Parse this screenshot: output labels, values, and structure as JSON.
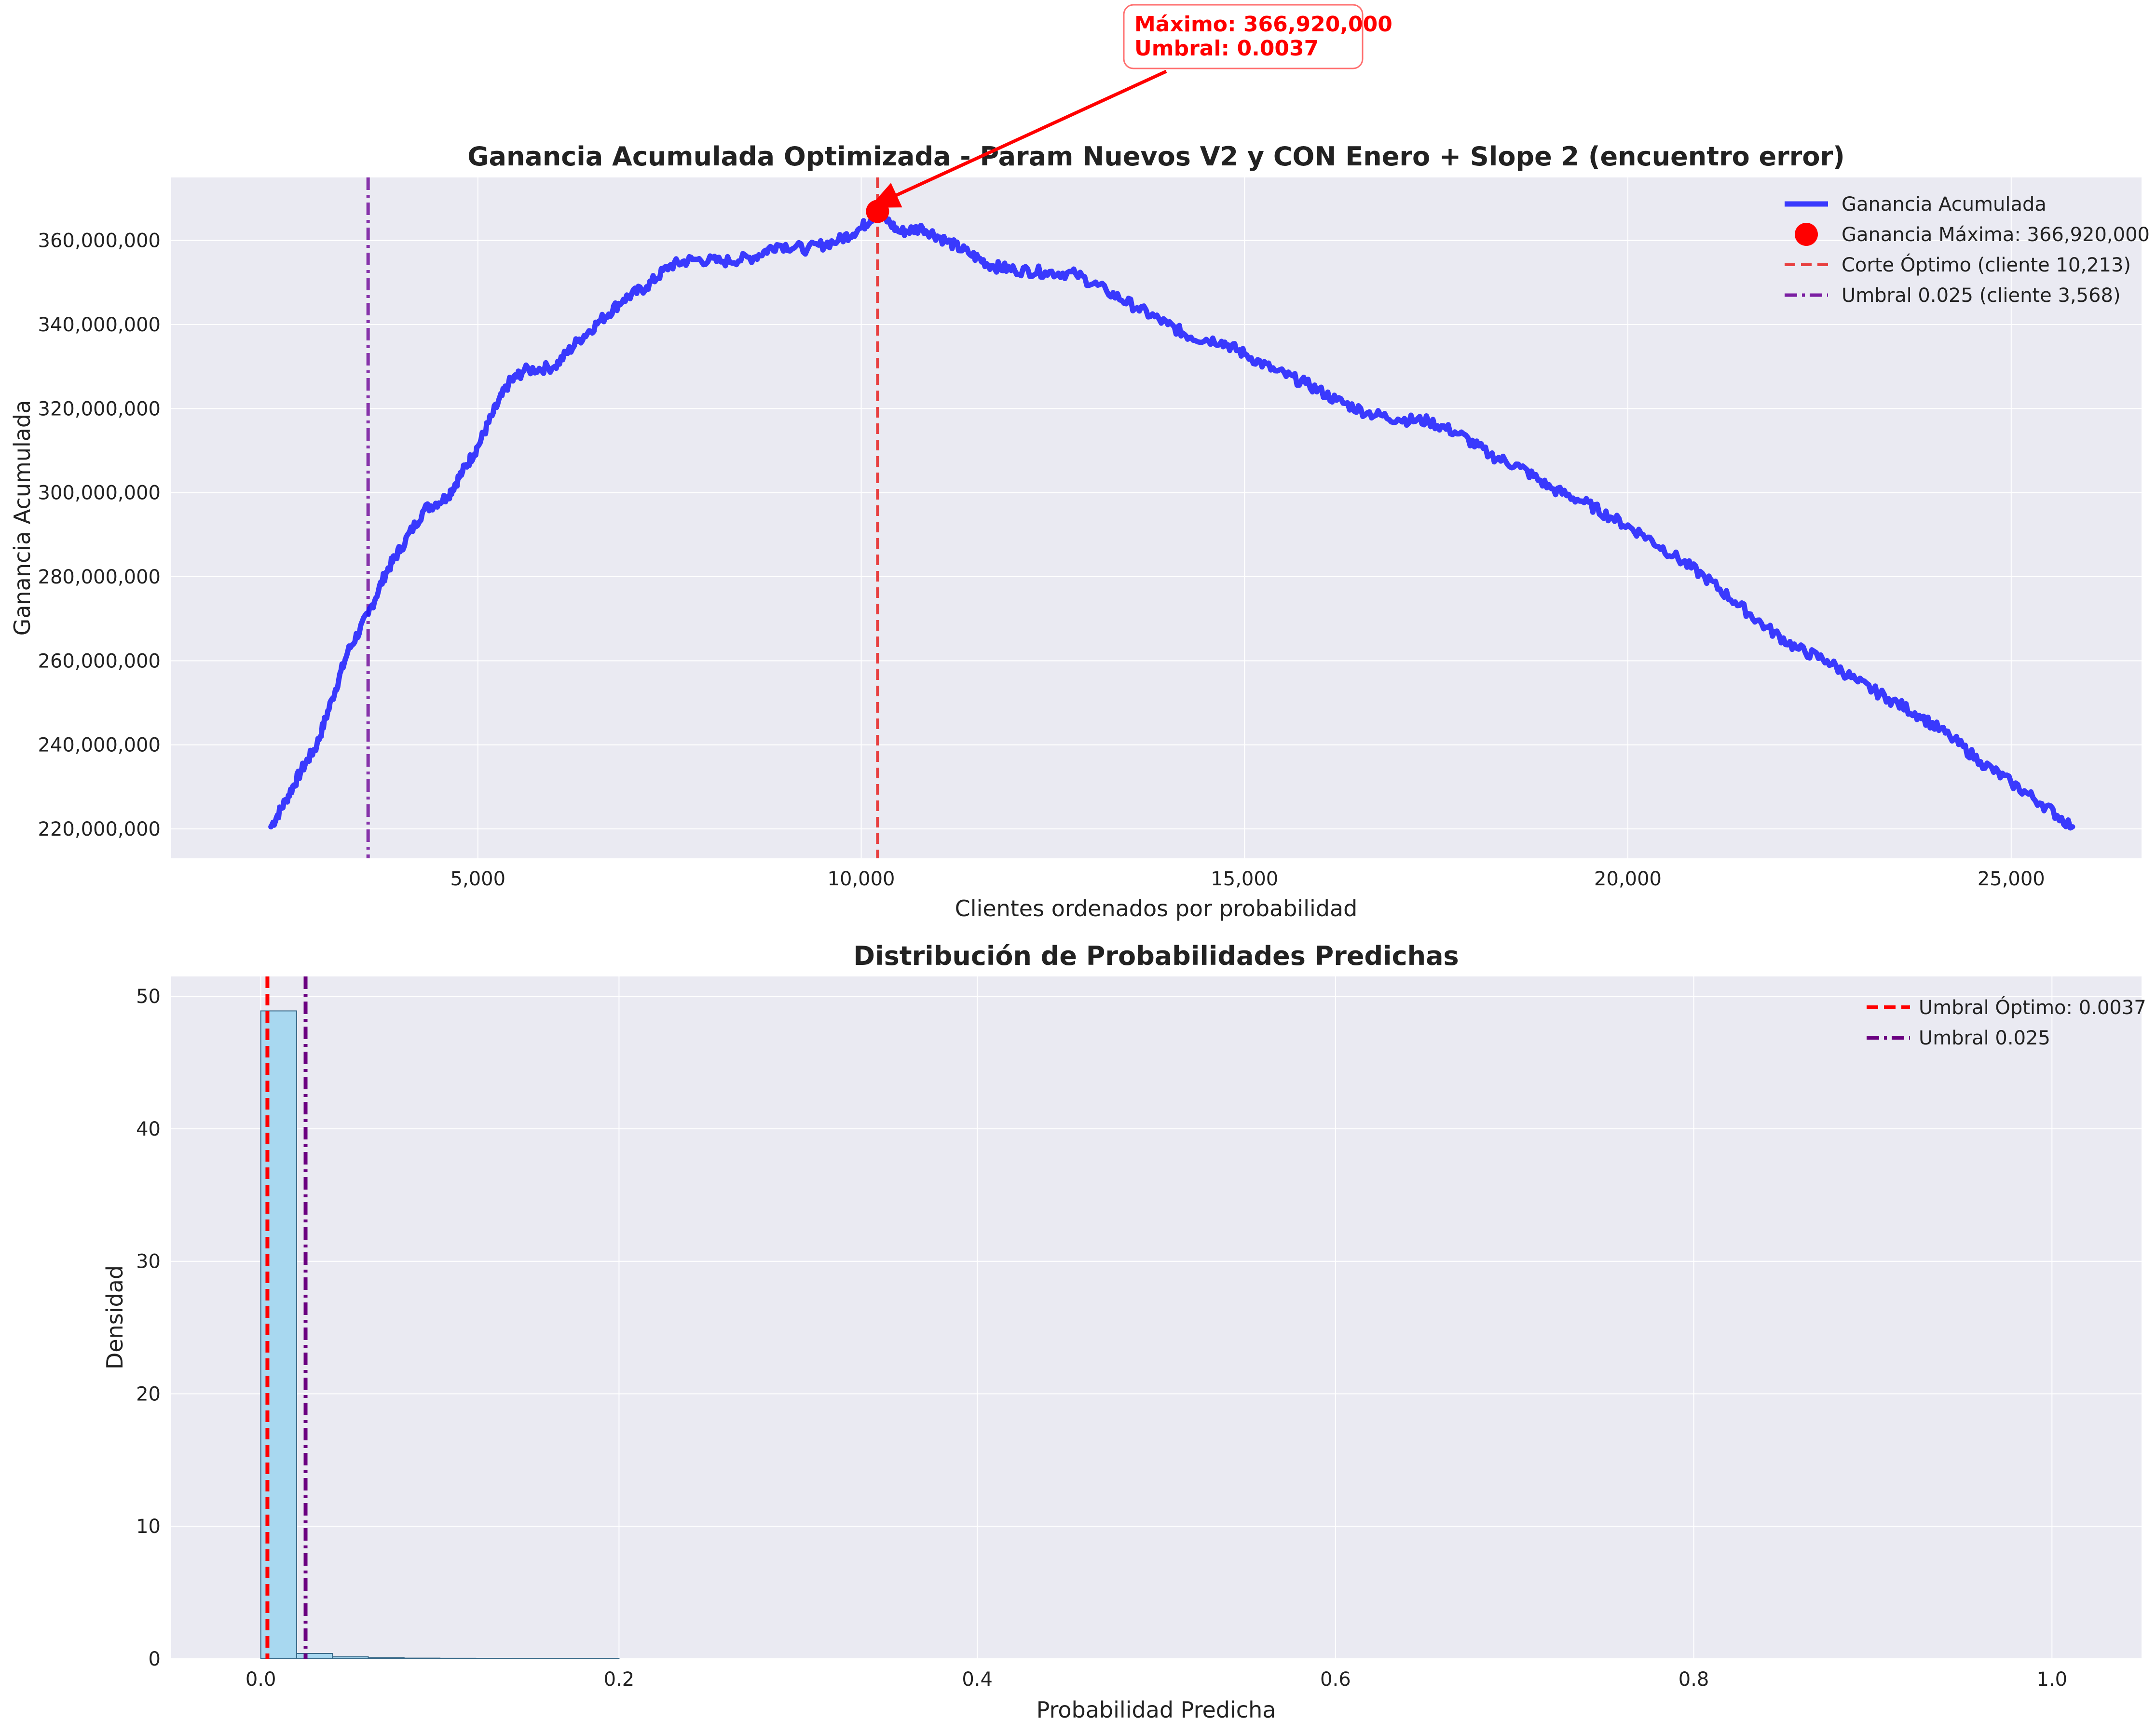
{
  "colors": {
    "axes_bg": "#eaeaf2",
    "grid": "#ffffff",
    "curve": "#1a1aff",
    "max_marker": "#ff0000",
    "optimal_line": "#e84040",
    "umbral_line": "#7b1fa2",
    "hist_fill": "#a8d8f0",
    "hist_edge": "#3a6b8a",
    "hist_optimal_line": "#ff0000",
    "hist_umbral_line": "#6a0080"
  },
  "annotation": {
    "line1": "Máximo: 366,920,000",
    "line2": "Umbral: 0.0037"
  },
  "chart_data": [
    {
      "type": "line",
      "title": "Ganancia Acumulada Optimizada - Param Nuevos V2 y CON Enero + Slope 2 (encuentro error)",
      "xlabel": "Clientes ordenados por probabilidad",
      "ylabel": "Ganancia Acumulada",
      "xlim": [
        1000,
        26700
      ],
      "ylim": [
        213000000,
        375000000
      ],
      "xticks": [
        5000,
        10000,
        15000,
        20000,
        25000
      ],
      "xtick_labels": [
        "5,000",
        "10,000",
        "15,000",
        "20,000",
        "25,000"
      ],
      "yticks": [
        220000000,
        240000000,
        260000000,
        280000000,
        300000000,
        320000000,
        340000000,
        360000000
      ],
      "ytick_labels": [
        "220,000,000",
        "240,000,000",
        "260,000,000",
        "280,000,000",
        "300,000,000",
        "320,000,000",
        "340,000,000",
        "360,000,000"
      ],
      "grid": true,
      "legend_position": "top-right",
      "series": [
        {
          "name": "Ganancia Acumulada",
          "x": [
            2300,
            2500,
            2700,
            2900,
            3100,
            3300,
            3568,
            3800,
            4000,
            4300,
            4600,
            4800,
            5000,
            5200,
            5400,
            5600,
            6000,
            6300,
            6600,
            6900,
            7200,
            7500,
            7800,
            8200,
            8600,
            8900,
            9300,
            9700,
            10000,
            10213,
            10500,
            10800,
            11100,
            11400,
            11700,
            12000,
            12400,
            12800,
            13200,
            13600,
            14000,
            14300,
            14700,
            15000,
            15400,
            15800,
            16200,
            16600,
            17000,
            17400,
            17800,
            18200,
            18600,
            19000,
            19400,
            19800,
            20200,
            20600,
            21000,
            21400,
            21800,
            22200,
            22600,
            23000,
            23400,
            23800,
            24200,
            24600,
            25000,
            25400,
            25800
          ],
          "y": [
            220500000,
            227000000,
            234000000,
            240000000,
            251000000,
            262000000,
            271000000,
            281000000,
            287000000,
            296000000,
            299000000,
            305000000,
            311000000,
            319000000,
            326000000,
            329000000,
            330000000,
            336000000,
            341000000,
            346000000,
            349000000,
            354000000,
            355500000,
            355000000,
            356000000,
            359000000,
            358000000,
            360000000,
            363000000,
            366920000,
            362000000,
            363000000,
            360000000,
            357000000,
            354000000,
            353000000,
            352500000,
            352000000,
            348000000,
            344000000,
            340000000,
            337000000,
            336000000,
            333000000,
            329000000,
            326000000,
            322000000,
            319000000,
            317500000,
            317000000,
            314000000,
            309000000,
            306000000,
            301000000,
            298000000,
            294000000,
            290000000,
            285000000,
            280000000,
            274000000,
            268000000,
            263000000,
            260000000,
            255000000,
            251000000,
            247000000,
            242000000,
            236000000,
            231000000,
            226000000,
            220500000
          ]
        },
        {
          "name": "Ganancia Máxima: 366,920,000",
          "x": [
            10213
          ],
          "y": [
            366920000
          ]
        }
      ],
      "vlines": [
        {
          "name": "Corte Óptimo (cliente 10,213)",
          "x": 10213
        },
        {
          "name": "Umbral 0.025 (cliente 3,568)",
          "x": 3568
        }
      ]
    },
    {
      "type": "bar",
      "title": "Distribución de Probabilidades Predichas",
      "xlabel": "Probabilidad Predicha",
      "ylabel": "Densidad",
      "xlim": [
        -0.05,
        1.05
      ],
      "ylim": [
        0,
        51.5
      ],
      "xticks": [
        0.0,
        0.2,
        0.4,
        0.6,
        0.8,
        1.0
      ],
      "xtick_labels": [
        "0.0",
        "0.2",
        "0.4",
        "0.6",
        "0.8",
        "1.0"
      ],
      "yticks": [
        0,
        10,
        20,
        30,
        40,
        50
      ],
      "ytick_labels": [
        "0",
        "10",
        "20",
        "30",
        "40",
        "50"
      ],
      "grid": true,
      "legend_position": "top-right",
      "bin_edges": [
        0.0,
        0.02,
        0.04,
        0.06,
        0.08,
        0.1,
        0.12,
        0.14,
        0.16,
        0.18,
        0.2
      ],
      "values": [
        48.9,
        0.4,
        0.15,
        0.08,
        0.05,
        0.04,
        0.03,
        0.02,
        0.02,
        0.02
      ],
      "vlines": [
        {
          "name": "Umbral Óptimo: 0.0037",
          "x": 0.0037
        },
        {
          "name": "Umbral 0.025",
          "x": 0.025
        }
      ]
    }
  ]
}
